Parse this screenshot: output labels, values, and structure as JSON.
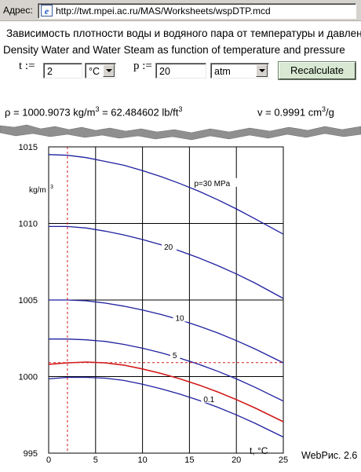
{
  "address_bar": {
    "label": "Адрес:",
    "url": "http://twt.mpei.ac.ru/MAS/Worksheets/wspDTP.mcd"
  },
  "worksheet": {
    "title_ru": "Зависимость плотности воды и водяного пара от температуры и давления",
    "title_en": "Density Water and Water Steam as function of temperature and pressure",
    "t_label": "t :=",
    "t_value": "2",
    "t_unit": "°C",
    "p_label": "p :=",
    "p_value": "20",
    "p_unit": "atm",
    "recalc_label": "Recalculate",
    "rho_lhs": "ρ = 1000.9073 kg/m",
    "rho_exp": "3",
    "rho_mid": " = 62.484602 lb/ft",
    "rho_exp2": "3",
    "v_lhs": "v = 0.9991 cm",
    "v_exp": "3",
    "v_tail": "/g",
    "figure_caption": "WebРис. 2.6"
  },
  "chart_data": {
    "type": "line",
    "x_range": [
      0,
      25
    ],
    "y_range": [
      995,
      1015
    ],
    "x_ticks": [
      0,
      5,
      10,
      15,
      20,
      25
    ],
    "y_ticks": [
      995,
      1000,
      1005,
      1010,
      1015
    ],
    "x_label": "t, °C",
    "y_unit_label": "kg/m",
    "y_unit_exp": "3",
    "grid": true,
    "series": [
      {
        "name": "p=30 MPa",
        "color": "#1f1fa0",
        "x": [
          0,
          2,
          4,
          6,
          8,
          10,
          12,
          14,
          16,
          18,
          20,
          22,
          25
        ],
        "y": [
          1014.5,
          1014.45,
          1014.3,
          1014.05,
          1013.8,
          1013.45,
          1013.05,
          1012.6,
          1012.1,
          1011.55,
          1010.95,
          1010.3,
          1009.3
        ]
      },
      {
        "name": "20",
        "color": "#1f1fa0",
        "x": [
          0,
          2,
          4,
          6,
          8,
          10,
          12,
          14,
          16,
          18,
          20,
          22,
          25
        ],
        "y": [
          1009.8,
          1009.8,
          1009.7,
          1009.5,
          1009.25,
          1008.95,
          1008.6,
          1008.2,
          1007.75,
          1007.25,
          1006.7,
          1006.1,
          1005.1
        ]
      },
      {
        "name": "10",
        "color": "#1f1fa0",
        "x": [
          0,
          2,
          4,
          6,
          8,
          10,
          12,
          14,
          16,
          18,
          20,
          22,
          25
        ],
        "y": [
          1005.0,
          1005.0,
          1004.95,
          1004.8,
          1004.6,
          1004.35,
          1004.05,
          1003.7,
          1003.3,
          1002.85,
          1002.35,
          1001.8,
          1000.9
        ]
      },
      {
        "name": "5",
        "color": "#1f1fa0",
        "x": [
          0,
          2,
          4,
          6,
          8,
          10,
          12,
          14,
          16,
          18,
          20,
          22,
          25
        ],
        "y": [
          1002.45,
          1002.45,
          1002.4,
          1002.3,
          1002.1,
          1001.85,
          1001.55,
          1001.2,
          1000.8,
          1000.35,
          999.85,
          999.3,
          998.4
        ]
      },
      {
        "name": "",
        "color": "#d21a1a",
        "x": [
          0,
          2,
          4,
          6,
          8,
          10,
          12,
          14,
          16,
          18,
          20,
          22,
          25
        ],
        "y": [
          1000.8,
          1000.9,
          1000.95,
          1000.9,
          1000.75,
          1000.5,
          1000.2,
          999.85,
          999.45,
          999.0,
          998.5,
          997.95,
          997.05
        ]
      },
      {
        "name": "0.1",
        "color": "#1f1fa0",
        "x": [
          0,
          2,
          4,
          6,
          8,
          10,
          12,
          14,
          16,
          18,
          20,
          22,
          25
        ],
        "y": [
          999.85,
          999.95,
          999.95,
          999.9,
          999.75,
          999.5,
          999.2,
          998.85,
          998.45,
          998.0,
          997.5,
          996.95,
          996.05
        ]
      }
    ],
    "series_labels": [
      {
        "text": "p=30 MPa",
        "x": 15.5,
        "y": 1012.65
      },
      {
        "text": "20",
        "x": 12.3,
        "y": 1008.5
      },
      {
        "text": "10",
        "x": 13.5,
        "y": 1003.85
      },
      {
        "text": "5",
        "x": 13.2,
        "y": 1001.4
      },
      {
        "text": "0.1",
        "x": 16.5,
        "y": 998.55
      }
    ],
    "crosshair": {
      "x": 2,
      "y": 1000.9073,
      "color": "#d21a1a"
    }
  }
}
